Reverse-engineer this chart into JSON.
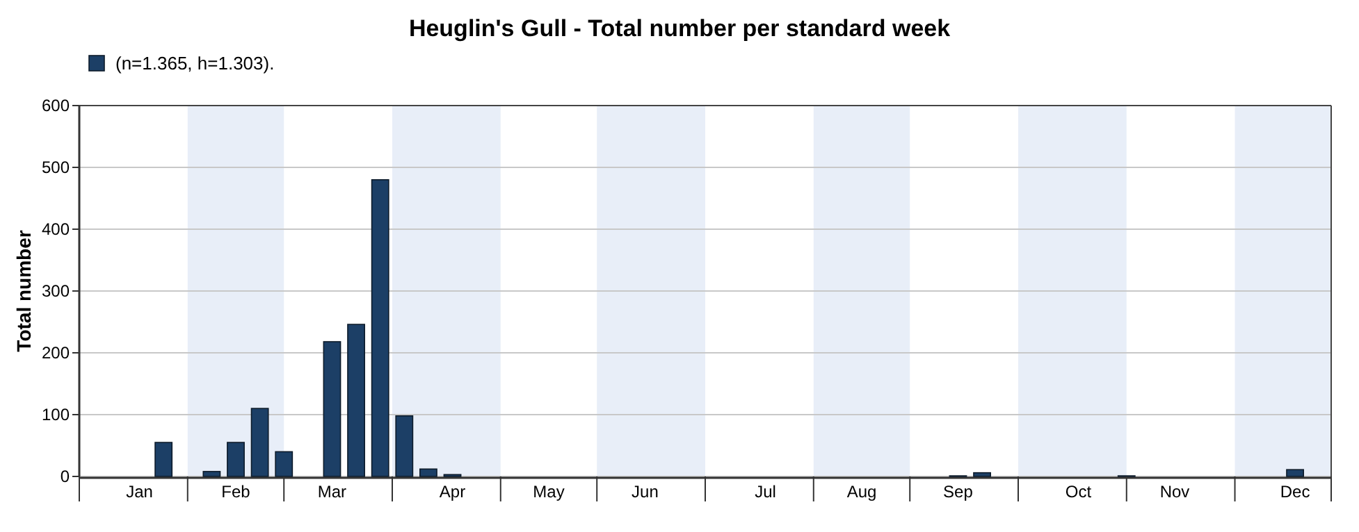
{
  "chart_data": {
    "type": "bar",
    "title": "Heuglin's Gull - Total number per standard week",
    "ylabel": "Total number",
    "categories": [
      null,
      null,
      "Jan",
      null,
      null,
      null,
      "Feb",
      null,
      null,
      null,
      "Mar",
      null,
      null,
      null,
      null,
      "Apr",
      null,
      null,
      null,
      "May",
      null,
      null,
      null,
      "Jun",
      null,
      null,
      null,
      null,
      "Jul",
      null,
      null,
      null,
      "Aug",
      null,
      null,
      null,
      "Sep",
      null,
      null,
      null,
      null,
      "Oct",
      null,
      null,
      null,
      "Nov",
      null,
      null,
      null,
      null,
      "Dec",
      null
    ],
    "series": [
      {
        "name": "(n=1.365, h=1.303).",
        "color": "#1c3f66",
        "values": [
          null,
          null,
          null,
          55,
          null,
          8,
          55,
          110,
          40,
          null,
          218,
          246,
          480,
          98,
          12,
          3,
          null,
          null,
          null,
          null,
          null,
          null,
          null,
          null,
          null,
          null,
          null,
          null,
          null,
          null,
          null,
          null,
          null,
          null,
          null,
          null,
          1,
          6,
          null,
          null,
          null,
          null,
          null,
          1,
          null,
          null,
          null,
          null,
          null,
          null,
          11,
          null
        ]
      }
    ],
    "ylim": [
      0,
      600
    ],
    "yticks": [
      0,
      100,
      200,
      300,
      400,
      500,
      600
    ],
    "grid": "y",
    "legend": "top left"
  }
}
